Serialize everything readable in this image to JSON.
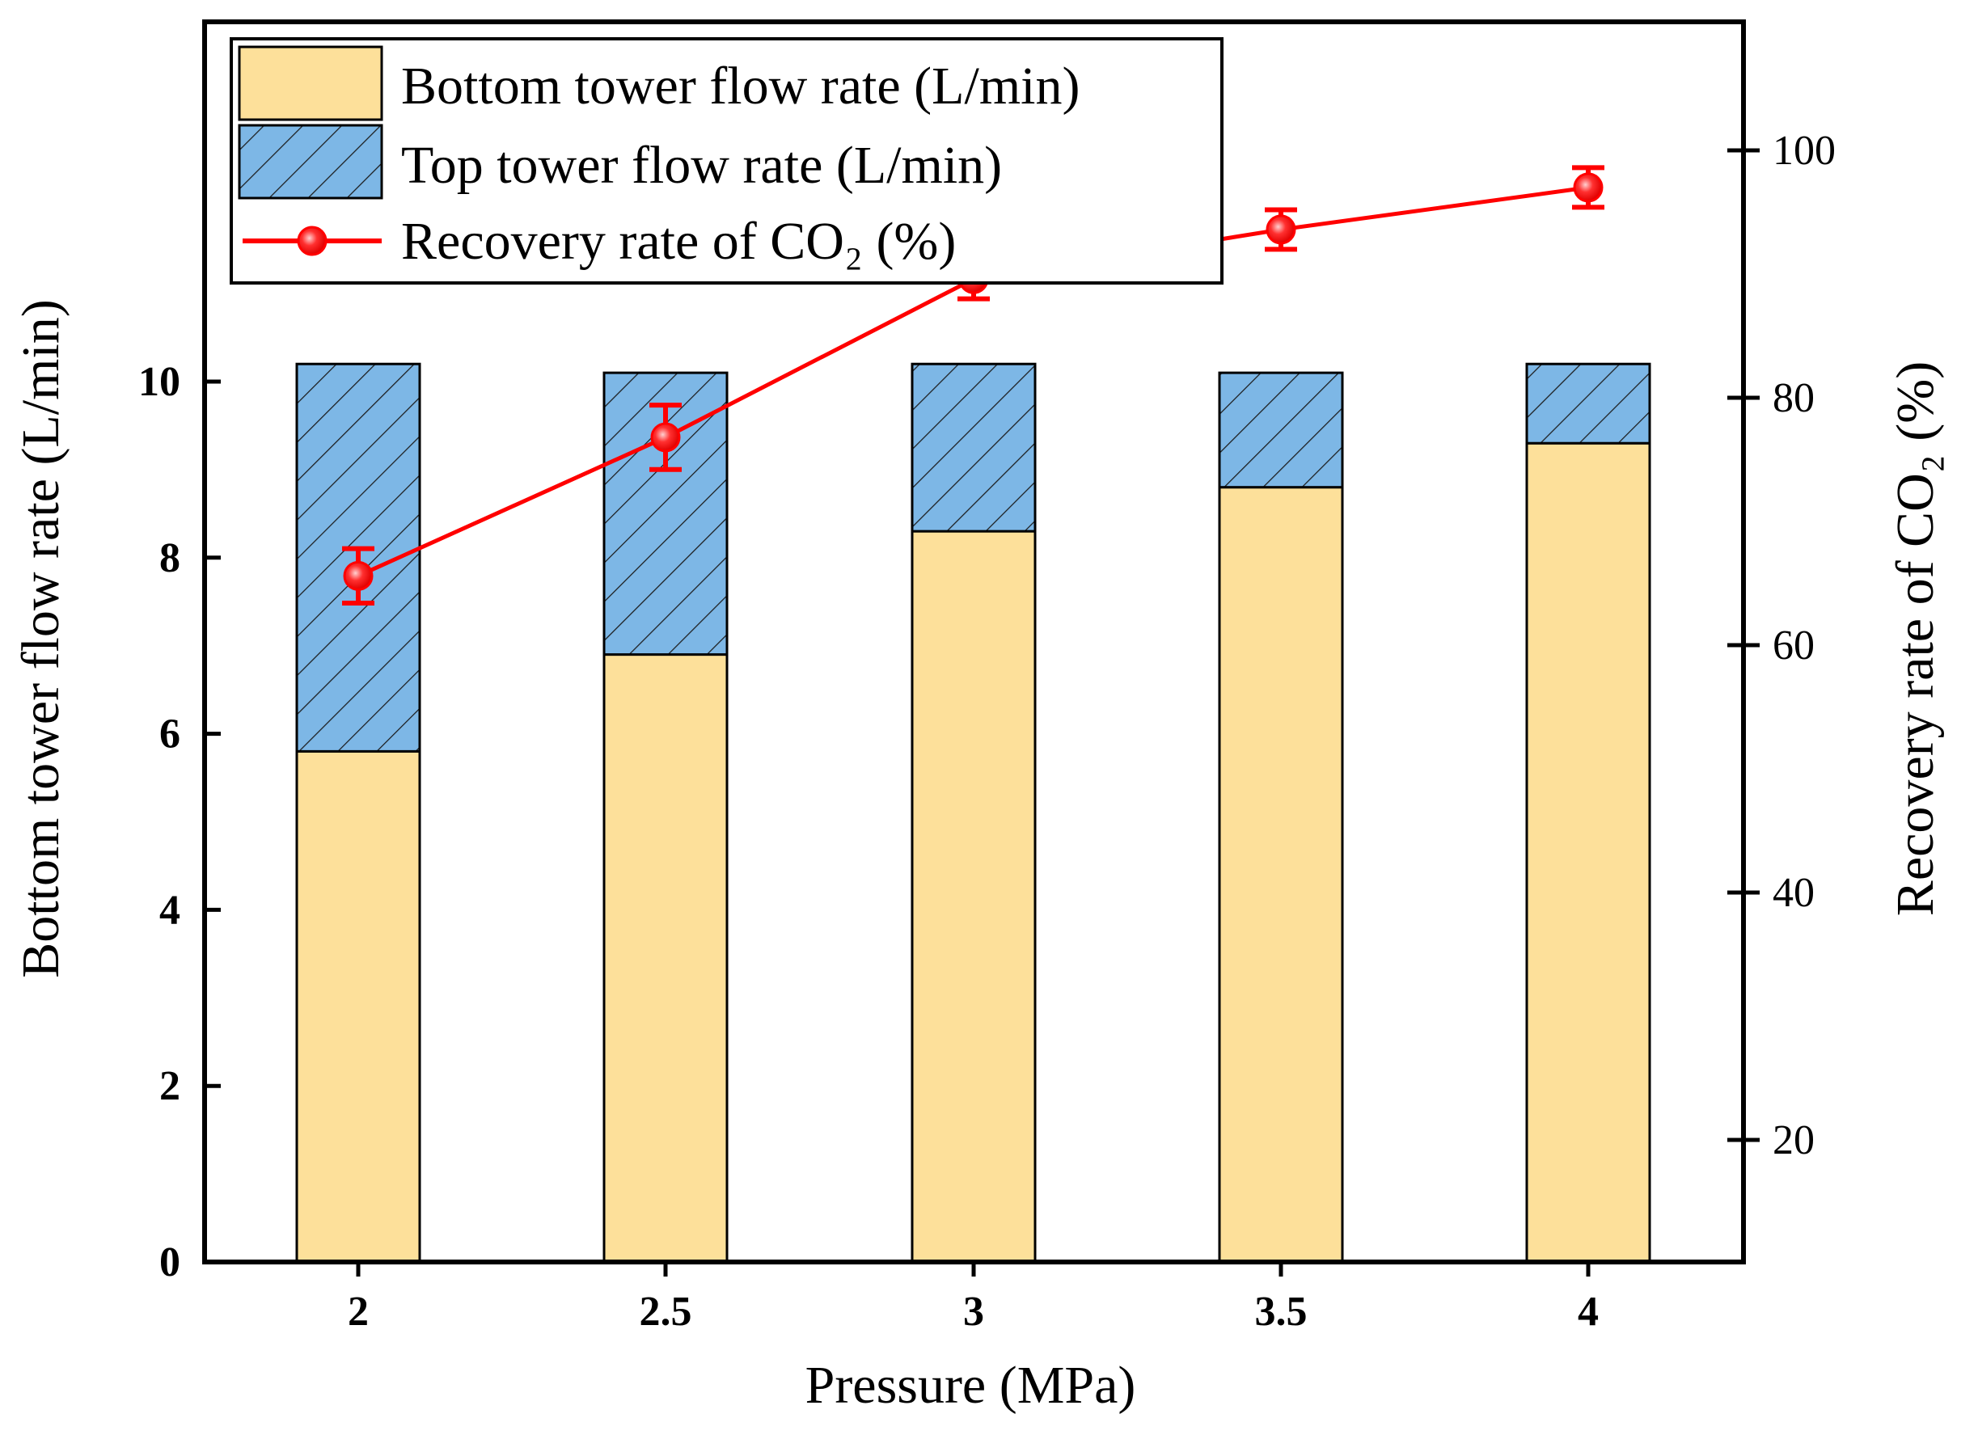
{
  "chart_data": {
    "type": "bar",
    "categories": [
      "2",
      "2.5",
      "3",
      "3.5",
      "4"
    ],
    "xlabel": "Pressure (MPa)",
    "ylabel_left": "Bottom tower flow rate (L/min)",
    "ylabel_right": "Recovery rate of CO₂ (%)",
    "ylim_left": [
      0,
      11.5
    ],
    "yticks_left": [
      0,
      2,
      4,
      6,
      8,
      10
    ],
    "ylim_right": [
      10,
      110
    ],
    "yticks_right": [
      20,
      40,
      60,
      80,
      100
    ],
    "series": [
      {
        "name": "Bottom tower flow rate (L/min)",
        "kind": "bar-stacked",
        "axis": "left",
        "color": "#fde09a",
        "values": [
          5.8,
          6.9,
          8.3,
          8.8,
          9.3
        ]
      },
      {
        "name": "Top tower flow rate (L/min)",
        "kind": "bar-stacked",
        "axis": "left",
        "color": "#7db7e6",
        "pattern": "diagonal-hatch",
        "values": [
          4.4,
          3.2,
          1.9,
          1.3,
          0.9
        ]
      },
      {
        "name": "Recovery rate of CO₂ (%)",
        "kind": "line",
        "axis": "right",
        "color": "#ff0000",
        "values": [
          65.6,
          76.8,
          89.6,
          93.6,
          97.0
        ],
        "errors": [
          2.2,
          2.6,
          1.6,
          1.6,
          1.6
        ]
      }
    ],
    "legend_position": "top-left"
  }
}
